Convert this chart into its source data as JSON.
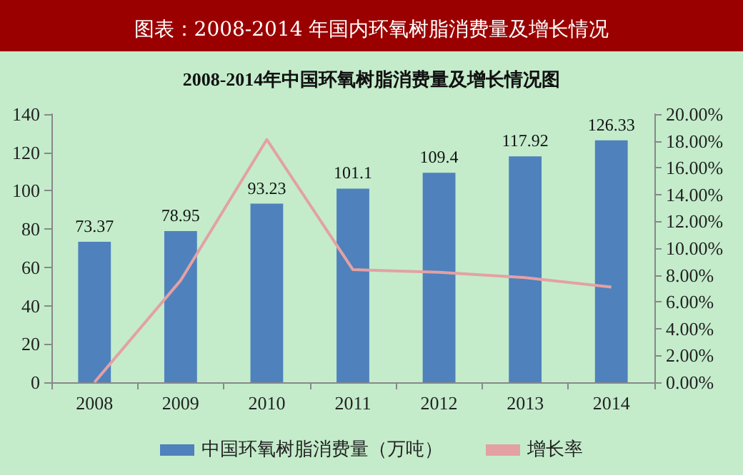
{
  "chart_data": {
    "type": "bar",
    "title": "图表：2008-2014 年国内环氧树脂消费量及增长情况",
    "subtitle": "2008-2014年中国环氧树脂消费量及增长情况图",
    "categories": [
      "2008",
      "2009",
      "2010",
      "2011",
      "2012",
      "2013",
      "2014"
    ],
    "series": [
      {
        "name": "中国环氧树脂消费量（万吨）",
        "color": "#4f81bd",
        "values": [
          73.37,
          78.95,
          93.23,
          101.1,
          109.4,
          117.92,
          126.33
        ],
        "value_labels": [
          "73.37",
          "78.95",
          "93.23",
          "101.1",
          "109.4",
          "117.92",
          "126.33"
        ]
      },
      {
        "name": "增长率",
        "type": "line",
        "axis": "y2",
        "color": "#e3a1a3",
        "values": [
          0,
          7.6,
          18.1,
          8.4,
          8.2,
          7.8,
          7.1
        ]
      }
    ],
    "ylim": [
      0,
      140
    ],
    "yticks": [
      0,
      20,
      40,
      60,
      80,
      100,
      120,
      140
    ],
    "y2lim": [
      0,
      20
    ],
    "y2ticks": [
      {
        "value": 0,
        "label": "0.00%"
      },
      {
        "value": 2,
        "label": "2.00%"
      },
      {
        "value": 4,
        "label": "4.00%"
      },
      {
        "value": 6,
        "label": "6.00%"
      },
      {
        "value": 8,
        "label": "8.00%"
      },
      {
        "value": 10,
        "label": "10.00%"
      },
      {
        "value": 12,
        "label": "12.00%"
      },
      {
        "value": 14,
        "label": "14.00%"
      },
      {
        "value": 16,
        "label": "16.00%"
      },
      {
        "value": 18,
        "label": "18.00%"
      },
      {
        "value": 20,
        "label": "20.00%"
      }
    ],
    "grid": false,
    "legend": "bottom",
    "marker": "none"
  }
}
